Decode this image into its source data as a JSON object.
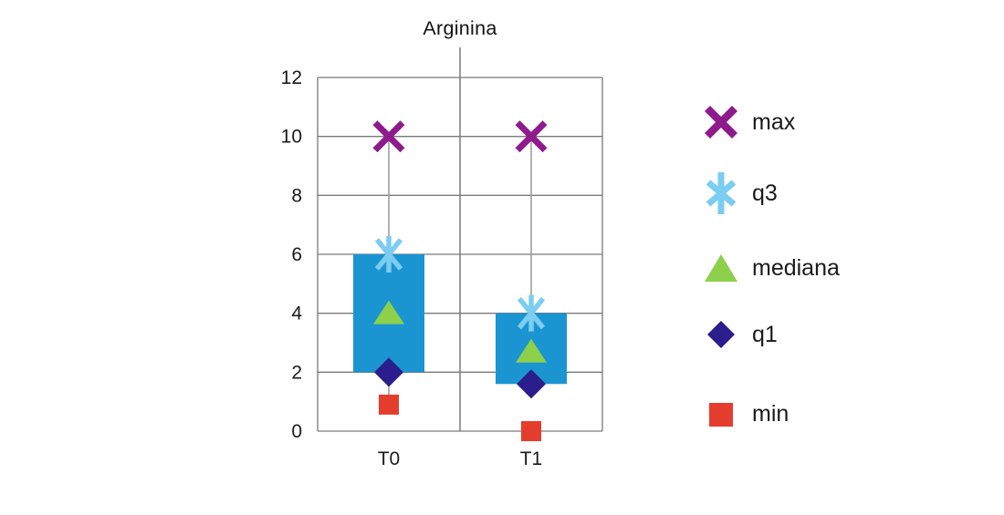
{
  "title": "Arginina",
  "colors": {
    "background": "#ffffff",
    "gridline": "#7a7a7a",
    "whisker": "#9e9e9e",
    "text": "#1a1a1a",
    "box_fill": "#1b94d2"
  },
  "chart_data": {
    "type": "boxplot",
    "title": "Arginina",
    "categories": [
      "T0",
      "T1"
    ],
    "series": [
      {
        "name": "max",
        "marker": "x",
        "color": "#8e1b8b",
        "values": [
          10,
          10
        ]
      },
      {
        "name": "q3",
        "marker": "asterisk",
        "color": "#7bcdf1",
        "values": [
          6,
          4
        ]
      },
      {
        "name": "mediana",
        "marker": "triangle",
        "color": "#8cd04b",
        "values": [
          4,
          2.7
        ]
      },
      {
        "name": "q1",
        "marker": "diamond",
        "color": "#2b1d8b",
        "values": [
          2,
          1.6
        ]
      },
      {
        "name": "min",
        "marker": "square",
        "color": "#e53d2d",
        "values": [
          0.9,
          0
        ]
      }
    ],
    "box": {
      "fill": "#1b94d2",
      "lower": "q1",
      "upper": "q3"
    },
    "whiskers": [
      {
        "category": "T0",
        "from": 10,
        "to": 6
      },
      {
        "category": "T1",
        "from": 10,
        "to": 4
      },
      {
        "category": "T0",
        "from": 2,
        "to": 0.9
      }
    ],
    "ylim": [
      0,
      12
    ],
    "yticks": [
      0,
      2,
      4,
      6,
      8,
      10,
      12
    ],
    "grid": true,
    "legend_position": "right",
    "xlabel": "",
    "ylabel": ""
  }
}
